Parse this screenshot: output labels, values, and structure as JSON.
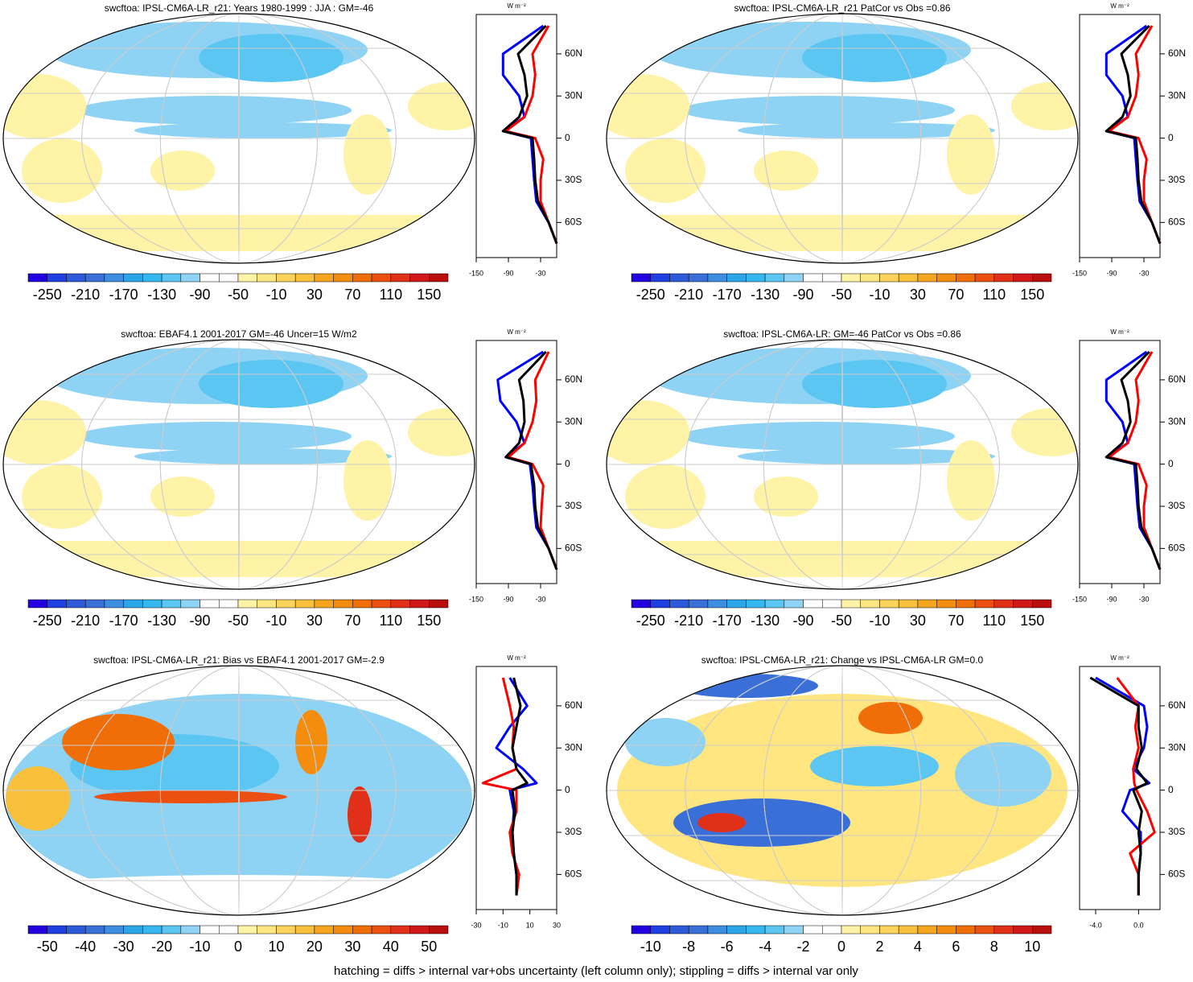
{
  "colorbar_colors": [
    "#2200e0",
    "#1f3fe0",
    "#2c5ad8",
    "#3a6fd8",
    "#3d8ee0",
    "#2aa6e8",
    "#35b7ef",
    "#5cc6f2",
    "#8ed3f4",
    "#ffffff",
    "#ffffff",
    "#fff3a8",
    "#ffe680",
    "#fbd35a",
    "#f9c03c",
    "#f6a51e",
    "#f48c0e",
    "#f06e08",
    "#ec5010",
    "#e03018",
    "#d01818",
    "#b80e0e"
  ],
  "panels": [
    {
      "title": "swcftoa: IPSL-CM6A-LR_r21: Years 1980-1999 : JJA : GM=-46",
      "colorbar": {
        "labels": [
          "-250",
          "-210",
          "-170",
          "-130",
          "-90",
          "-50",
          "-10",
          "30",
          "70",
          "110",
          "150"
        ]
      },
      "profile": {
        "unit": "W m⁻²",
        "xlim": [
          -150,
          0
        ],
        "xticks": [
          -150,
          -90,
          -30
        ],
        "ylim": [
          -85,
          88
        ],
        "yticks": [
          {
            "value": 60,
            "label": "60N"
          },
          {
            "value": 30,
            "label": "30N"
          },
          0,
          {
            "value": -30,
            "label": "30S"
          },
          {
            "value": -60,
            "label": "60S"
          }
        ],
        "lat": [
          80,
          60,
          45,
          30,
          15,
          5,
          0,
          -15,
          -30,
          -45,
          -60,
          -75
        ],
        "series": [
          {
            "color": "#0000ff",
            "values": [
              -25,
              -100,
              -100,
              -70,
              -60,
              -100,
              -48,
              -45,
              -42,
              -38,
              -15,
              0
            ]
          },
          {
            "color": "#ff0000",
            "values": [
              -15,
              -45,
              -40,
              -45,
              -60,
              -95,
              -40,
              -25,
              -30,
              -30,
              -15,
              0
            ]
          },
          {
            "color": "#000000",
            "values": [
              -20,
              -72,
              -60,
              -55,
              -70,
              -100,
              -45,
              -42,
              -40,
              -35,
              -15,
              0
            ]
          }
        ]
      }
    },
    {
      "title": "swcftoa: IPSL-CM6A-LR_r21 PatCor vs Obs =0.86",
      "colorbar": {
        "labels": [
          "-250",
          "-210",
          "-170",
          "-130",
          "-90",
          "-50",
          "-10",
          "30",
          "70",
          "110",
          "150"
        ]
      },
      "profile": {
        "unit": "W m⁻²",
        "xlim": [
          -150,
          0
        ],
        "xticks": [
          -150,
          -90,
          -30
        ],
        "ylim": [
          -85,
          88
        ],
        "yticks": [
          {
            "value": 60,
            "label": "60N"
          },
          {
            "value": 30,
            "label": "30N"
          },
          0,
          {
            "value": -30,
            "label": "30S"
          },
          {
            "value": -60,
            "label": "60S"
          }
        ],
        "lat": [
          80,
          60,
          45,
          30,
          15,
          5,
          0,
          -15,
          -30,
          -45,
          -60,
          -75
        ],
        "series": [
          {
            "color": "#0000ff",
            "values": [
              -25,
              -100,
              -100,
              -70,
              -60,
              -100,
              -48,
              -45,
              -42,
              -38,
              -15,
              0
            ]
          },
          {
            "color": "#ff0000",
            "values": [
              -15,
              -45,
              -40,
              -45,
              -60,
              -95,
              -40,
              -25,
              -30,
              -30,
              -15,
              0
            ]
          },
          {
            "color": "#000000",
            "values": [
              -20,
              -72,
              -60,
              -55,
              -70,
              -100,
              -45,
              -42,
              -40,
              -35,
              -15,
              0
            ]
          }
        ]
      }
    },
    {
      "title": "swcftoa: EBAF4.1 2001-2017 GM=-46 Uncer=15 W/m2",
      "colorbar": {
        "labels": [
          "-250",
          "-210",
          "-170",
          "-130",
          "-90",
          "-50",
          "-10",
          "30",
          "70",
          "110",
          "150"
        ]
      },
      "profile": {
        "unit": "W m⁻²",
        "xlim": [
          -150,
          0
        ],
        "xticks": [
          -150,
          -90,
          -30
        ],
        "ylim": [
          -85,
          88
        ],
        "yticks": [
          {
            "value": 60,
            "label": "60N"
          },
          {
            "value": 30,
            "label": "30N"
          },
          0,
          {
            "value": -30,
            "label": "30S"
          },
          {
            "value": -60,
            "label": "60S"
          }
        ],
        "lat": [
          80,
          60,
          45,
          30,
          15,
          5,
          0,
          -15,
          -30,
          -45,
          -60,
          -75
        ],
        "series": [
          {
            "color": "#0000ff",
            "values": [
              -25,
              -110,
              -105,
              -75,
              -60,
              -95,
              -50,
              -45,
              -42,
              -38,
              -15,
              0
            ]
          },
          {
            "color": "#ff0000",
            "values": [
              -15,
              -40,
              -38,
              -45,
              -60,
              -90,
              -45,
              -25,
              -28,
              -30,
              -15,
              0
            ]
          },
          {
            "color": "#000000",
            "values": [
              -20,
              -70,
              -62,
              -60,
              -70,
              -95,
              -48,
              -42,
              -40,
              -35,
              -15,
              0
            ]
          }
        ]
      }
    },
    {
      "title": "swcftoa: IPSL-CM6A-LR: GM=-46 PatCor vs Obs =0.86",
      "colorbar": {
        "labels": [
          "-250",
          "-210",
          "-170",
          "-130",
          "-90",
          "-50",
          "-10",
          "30",
          "70",
          "110",
          "150"
        ]
      },
      "profile": {
        "unit": "W m⁻²",
        "xlim": [
          -150,
          0
        ],
        "xticks": [
          -150,
          -90,
          -30
        ],
        "ylim": [
          -85,
          88
        ],
        "yticks": [
          {
            "value": 60,
            "label": "60N"
          },
          {
            "value": 30,
            "label": "30N"
          },
          0,
          {
            "value": -30,
            "label": "30S"
          },
          {
            "value": -60,
            "label": "60S"
          }
        ],
        "lat": [
          80,
          60,
          45,
          30,
          15,
          5,
          0,
          -15,
          -30,
          -45,
          -60,
          -75
        ],
        "series": [
          {
            "color": "#0000ff",
            "values": [
              -25,
              -100,
              -100,
              -70,
              -60,
              -100,
              -48,
              -45,
              -42,
              -38,
              -15,
              0
            ]
          },
          {
            "color": "#ff0000",
            "values": [
              -15,
              -45,
              -40,
              -45,
              -60,
              -95,
              -40,
              -25,
              -30,
              -30,
              -15,
              0
            ]
          },
          {
            "color": "#000000",
            "values": [
              -20,
              -72,
              -60,
              -55,
              -70,
              -100,
              -45,
              -42,
              -40,
              -35,
              -15,
              0
            ]
          }
        ]
      }
    },
    {
      "title": "swcftoa: IPSL-CM6A-LR_r21: Bias vs EBAF4.1 2001-2017 GM=-2.9",
      "colorbar": {
        "labels": [
          "-50",
          "-40",
          "-30",
          "-20",
          "-10",
          "0",
          "10",
          "20",
          "30",
          "40",
          "50"
        ]
      },
      "profile": {
        "unit": "W m⁻²",
        "xlim": [
          -30,
          30
        ],
        "xticks": [
          -30,
          -10,
          10,
          30
        ],
        "ylim": [
          -85,
          88
        ],
        "yticks": [
          {
            "value": 60,
            "label": "60N"
          },
          {
            "value": 30,
            "label": "30N"
          },
          0,
          {
            "value": -30,
            "label": "30S"
          },
          {
            "value": -60,
            "label": "60S"
          }
        ],
        "lat": [
          80,
          60,
          45,
          30,
          15,
          5,
          0,
          -15,
          -30,
          -45,
          -60,
          -75
        ],
        "series": [
          {
            "color": "#0000ff",
            "values": [
              -5,
              8,
              -5,
              -15,
              5,
              15,
              -5,
              -2,
              -3,
              -2,
              0,
              0
            ]
          },
          {
            "color": "#ff0000",
            "values": [
              -10,
              -5,
              -2,
              -3,
              0,
              -25,
              0,
              0,
              -5,
              -3,
              2,
              0
            ]
          },
          {
            "color": "#000000",
            "values": [
              -2,
              3,
              0,
              -3,
              0,
              8,
              -3,
              -1,
              -3,
              -2,
              0,
              0
            ]
          }
        ]
      }
    },
    {
      "title": "swcftoa: IPSL-CM6A-LR_r21: Change vs IPSL-CM6A-LR GM=0.0",
      "colorbar": {
        "labels": [
          "-10",
          "-8",
          "-6",
          "-4",
          "-2",
          "0",
          "2",
          "4",
          "6",
          "8",
          "10"
        ]
      },
      "profile": {
        "unit": "W m⁻²",
        "xlim": [
          -5.5,
          2
        ],
        "xticks": [
          {
            "value": -4,
            "label": "-4.0"
          },
          {
            "value": 0,
            "label": "0.0"
          }
        ],
        "ylim": [
          -85,
          88
        ],
        "yticks": [
          {
            "value": 60,
            "label": "60N"
          },
          {
            "value": 30,
            "label": "30N"
          },
          0,
          {
            "value": -30,
            "label": "30S"
          },
          {
            "value": -60,
            "label": "60S"
          }
        ],
        "lat": [
          80,
          60,
          45,
          30,
          15,
          5,
          0,
          -15,
          -30,
          -45,
          -60,
          -75
        ],
        "series": [
          {
            "color": "#0000ff",
            "values": [
              -4,
              0.5,
              0.8,
              0.5,
              -0.5,
              1,
              -0.8,
              -1.5,
              0.2,
              0.2,
              0,
              0
            ]
          },
          {
            "color": "#ff0000",
            "values": [
              -2,
              0,
              -0.3,
              0,
              -0.5,
              -0.4,
              -0.2,
              0.8,
              1.5,
              -0.8,
              0,
              0
            ]
          },
          {
            "color": "#000000",
            "values": [
              -4.5,
              0,
              0,
              0.3,
              -0.2,
              0.8,
              -0.5,
              0.3,
              0,
              0.2,
              0,
              0
            ]
          }
        ]
      }
    }
  ],
  "footer": "hatching = diffs > internal var+obs uncertainty (left column only); stippling = diffs > internal var only"
}
